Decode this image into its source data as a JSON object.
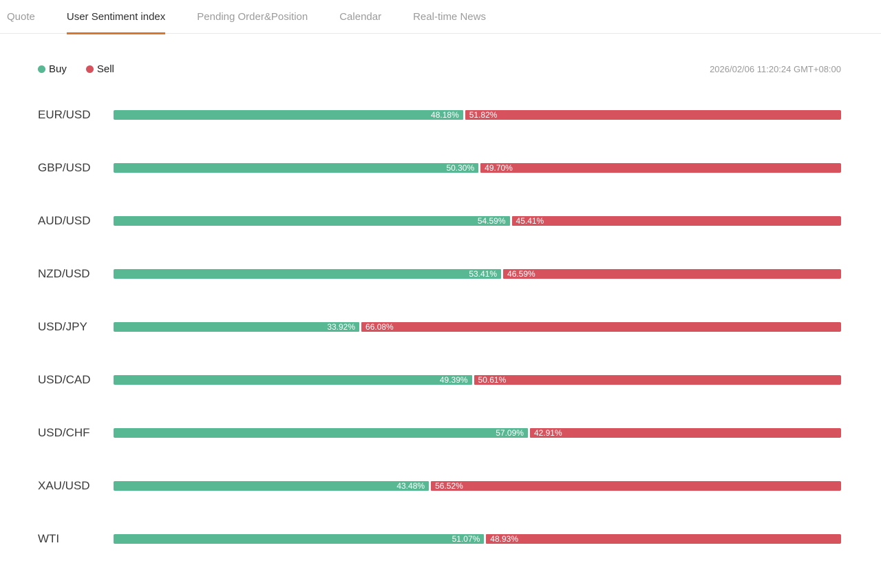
{
  "tabs": [
    {
      "label": "Quote",
      "active": false
    },
    {
      "label": "User Sentiment index",
      "active": true
    },
    {
      "label": "Pending Order&Position",
      "active": false
    },
    {
      "label": "Calendar",
      "active": false
    },
    {
      "label": "Real-time News",
      "active": false
    }
  ],
  "legend": {
    "buy_label": "Buy",
    "sell_label": "Sell"
  },
  "timestamp": "2026/02/06 11:20:24 GMT+08:00",
  "colors": {
    "buy": "#57b893",
    "sell": "#d6535e",
    "accent": "#d9772f"
  },
  "chart_data": {
    "type": "bar",
    "orientation": "horizontal-stacked",
    "title": "User Sentiment index",
    "categories": [
      "EUR/USD",
      "GBP/USD",
      "AUD/USD",
      "NZD/USD",
      "USD/JPY",
      "USD/CAD",
      "USD/CHF",
      "XAU/USD",
      "WTI"
    ],
    "series": [
      {
        "name": "Buy",
        "values": [
          48.18,
          50.3,
          54.59,
          53.41,
          33.92,
          49.39,
          57.09,
          43.48,
          51.07
        ],
        "labels": [
          "48.18%",
          "50.30%",
          "54.59%",
          "53.41%",
          "33.92%",
          "49.39%",
          "57.09%",
          "43.48%",
          "51.07%"
        ]
      },
      {
        "name": "Sell",
        "values": [
          51.82,
          49.7,
          45.41,
          46.59,
          66.08,
          50.61,
          42.91,
          56.52,
          48.93
        ],
        "labels": [
          "51.82%",
          "49.70%",
          "45.41%",
          "46.59%",
          "66.08%",
          "50.61%",
          "42.91%",
          "56.52%",
          "48.93%"
        ]
      }
    ],
    "xlim": [
      0,
      100
    ],
    "value_labels_inside": true,
    "legend_position": "top-left"
  }
}
